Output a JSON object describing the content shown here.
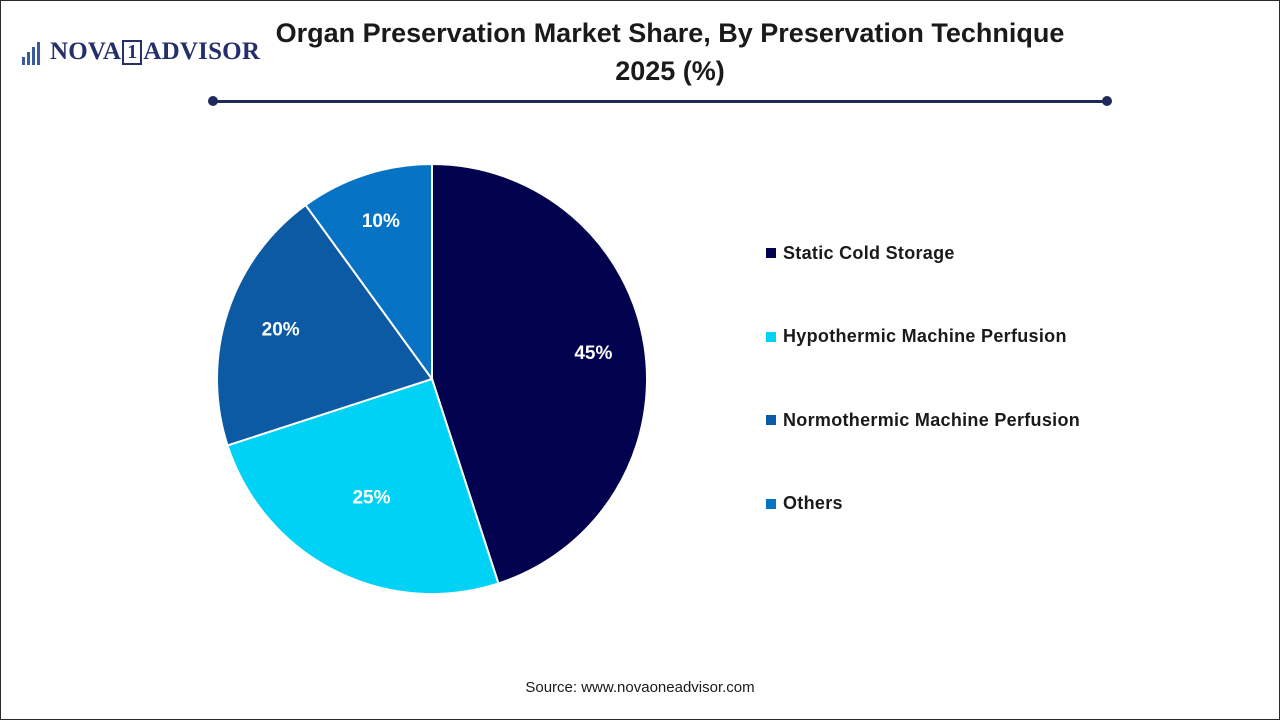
{
  "brand": {
    "logo_left": "NOVA",
    "logo_one": "1",
    "logo_right": "ADVISOR",
    "colors": {
      "navy": "#25306b",
      "bars": "#3a5a9c"
    }
  },
  "chart_data": {
    "type": "pie",
    "title": "Organ Preservation Market Share, By Preservation Technique",
    "subtitle": "2025 (%)",
    "categories": [
      "Static Cold Storage",
      "Hypothermic Machine Perfusion",
      "Normothermic Machine Perfusion",
      "Others"
    ],
    "values": [
      45,
      25,
      20,
      10
    ],
    "value_labels": [
      "45%",
      "25%",
      "20%",
      "10%"
    ],
    "colors": [
      "#02024f",
      "#00d2f5",
      "#0b5aa3",
      "#0773c5"
    ],
    "legend_position": "right",
    "start_angle": "12 o'clock",
    "direction": "clockwise"
  },
  "source": "Source: www.novaoneadvisor.com"
}
